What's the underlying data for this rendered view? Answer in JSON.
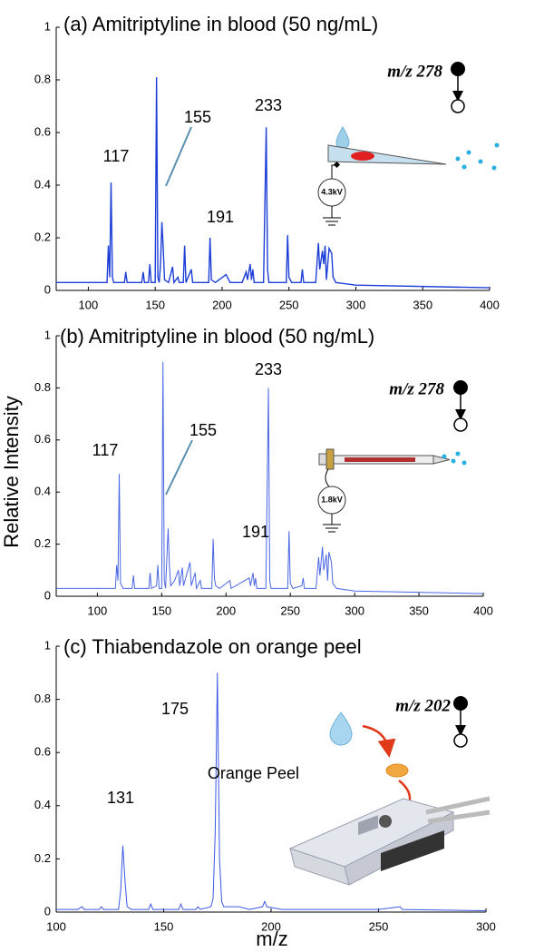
{
  "chart_data": [
    {
      "type": "line",
      "title": "(a)  Amitriptyline in blood (50 ng/mL)",
      "x": [
        76,
        114,
        115,
        116,
        117,
        118,
        119,
        127,
        128,
        129,
        140,
        141,
        142,
        145,
        146,
        147,
        150,
        151,
        152,
        153,
        154,
        155,
        156,
        157,
        160,
        163,
        164,
        167,
        168,
        171,
        172,
        173,
        177,
        178,
        190,
        191,
        192,
        195,
        203,
        206,
        215,
        218,
        219,
        221,
        222,
        223,
        224,
        231,
        233,
        234,
        235,
        248,
        249,
        250,
        252,
        259,
        260,
        261,
        270,
        272,
        273,
        275,
        276,
        277,
        278,
        280,
        282,
        283,
        285,
        300,
        400
      ],
      "values": [
        0.03,
        0.03,
        0.17,
        0.05,
        0.41,
        0.05,
        0.03,
        0.03,
        0.07,
        0.03,
        0.03,
        0.07,
        0.03,
        0.03,
        0.1,
        0.03,
        0.03,
        0.81,
        0.05,
        0.03,
        0.1,
        0.26,
        0.16,
        0.04,
        0.03,
        0.09,
        0.03,
        0.05,
        0.03,
        0.03,
        0.17,
        0.03,
        0.08,
        0.03,
        0.03,
        0.2,
        0.04,
        0.03,
        0.06,
        0.03,
        0.03,
        0.07,
        0.04,
        0.1,
        0.04,
        0.08,
        0.03,
        0.03,
        0.62,
        0.08,
        0.03,
        0.03,
        0.21,
        0.05,
        0.03,
        0.03,
        0.08,
        0.03,
        0.03,
        0.18,
        0.08,
        0.15,
        0.1,
        0.17,
        0.04,
        0.16,
        0.14,
        0.05,
        0.03,
        0.02,
        0.01
      ],
      "color": "#1d3fd8",
      "xlim": [
        76,
        400
      ],
      "xticks": [
        100,
        150,
        200,
        250,
        300,
        350,
        400
      ],
      "ylim": [
        0,
        1
      ],
      "yticks": [
        0,
        0.2,
        0.4,
        0.6,
        0.8,
        1
      ],
      "annotations": [
        "117",
        "155",
        "191",
        "233"
      ],
      "precursor": "m/z 278",
      "inset_labels": [
        "4.3kV"
      ]
    },
    {
      "type": "line",
      "title": "(b) Amitriptyline in blood (50 ng/mL)",
      "x": [
        68,
        114,
        115,
        116,
        117,
        118,
        120,
        127,
        128,
        129,
        140,
        141,
        142,
        146,
        147,
        148,
        150,
        151,
        152,
        153,
        155,
        156,
        157,
        160,
        163,
        164,
        166,
        167,
        172,
        173,
        176,
        177,
        180,
        181,
        189,
        190,
        191,
        192,
        195,
        203,
        204,
        218,
        219,
        221,
        222,
        223,
        224,
        231,
        233,
        234,
        235,
        248,
        249,
        250,
        252,
        259,
        260,
        261,
        270,
        272,
        273,
        275,
        276,
        278,
        279,
        280,
        282,
        283,
        286,
        300,
        400
      ],
      "values": [
        0.03,
        0.03,
        0.12,
        0.06,
        0.47,
        0.05,
        0.03,
        0.03,
        0.08,
        0.03,
        0.03,
        0.09,
        0.03,
        0.04,
        0.12,
        0.03,
        0.03,
        0.9,
        0.06,
        0.03,
        0.26,
        0.12,
        0.04,
        0.06,
        0.1,
        0.04,
        0.11,
        0.04,
        0.13,
        0.04,
        0.09,
        0.03,
        0.06,
        0.03,
        0.03,
        0.22,
        0.07,
        0.04,
        0.03,
        0.06,
        0.03,
        0.07,
        0.04,
        0.09,
        0.04,
        0.07,
        0.03,
        0.03,
        0.8,
        0.06,
        0.03,
        0.03,
        0.25,
        0.05,
        0.03,
        0.04,
        0.07,
        0.03,
        0.03,
        0.15,
        0.08,
        0.19,
        0.1,
        0.16,
        0.06,
        0.17,
        0.13,
        0.05,
        0.03,
        0.02,
        0.01
      ],
      "color": "#4a66e4",
      "xlim": [
        68,
        400
      ],
      "xticks": [
        100,
        150,
        200,
        250,
        300,
        350,
        400
      ],
      "ylim": [
        0,
        1
      ],
      "yticks": [
        0,
        0.2,
        0.4,
        0.6,
        0.8,
        1
      ],
      "ylabel": "Relative Intensity",
      "annotations": [
        "117",
        "155",
        "191",
        "233"
      ],
      "precursor": "m/z 278",
      "inset_labels": [
        "1.8kV"
      ]
    },
    {
      "type": "line",
      "title": "(c) Thiabendazole on orange peel",
      "x": [
        100,
        110,
        112,
        113,
        120,
        121,
        122,
        129,
        130,
        131,
        132,
        133,
        135,
        143,
        144,
        145,
        157,
        158,
        159,
        165,
        166,
        167,
        172,
        173,
        174,
        175,
        176,
        177,
        178,
        185,
        190,
        196,
        197,
        198,
        205,
        220,
        230,
        250,
        260,
        261,
        300
      ],
      "values": [
        0.01,
        0.01,
        0.02,
        0.01,
        0.01,
        0.02,
        0.01,
        0.01,
        0.08,
        0.25,
        0.12,
        0.02,
        0.01,
        0.01,
        0.03,
        0.01,
        0.01,
        0.03,
        0.01,
        0.01,
        0.02,
        0.01,
        0.02,
        0.05,
        0.3,
        0.9,
        0.2,
        0.04,
        0.02,
        0.02,
        0.01,
        0.02,
        0.04,
        0.02,
        0.01,
        0.01,
        0.01,
        0.01,
        0.02,
        0.01,
        0.005
      ],
      "color": "#3c58e2",
      "xlim": [
        100,
        300
      ],
      "xticks": [
        100,
        150,
        200,
        250,
        300
      ],
      "ylim": [
        0,
        1
      ],
      "yticks": [
        0,
        0.2,
        0.4,
        0.6,
        0.8,
        1
      ],
      "xlabel": "m/z",
      "annotations": [
        "131",
        "175"
      ],
      "precursor": "m/z 202",
      "inset_labels": [
        "Orange Peel"
      ]
    }
  ]
}
